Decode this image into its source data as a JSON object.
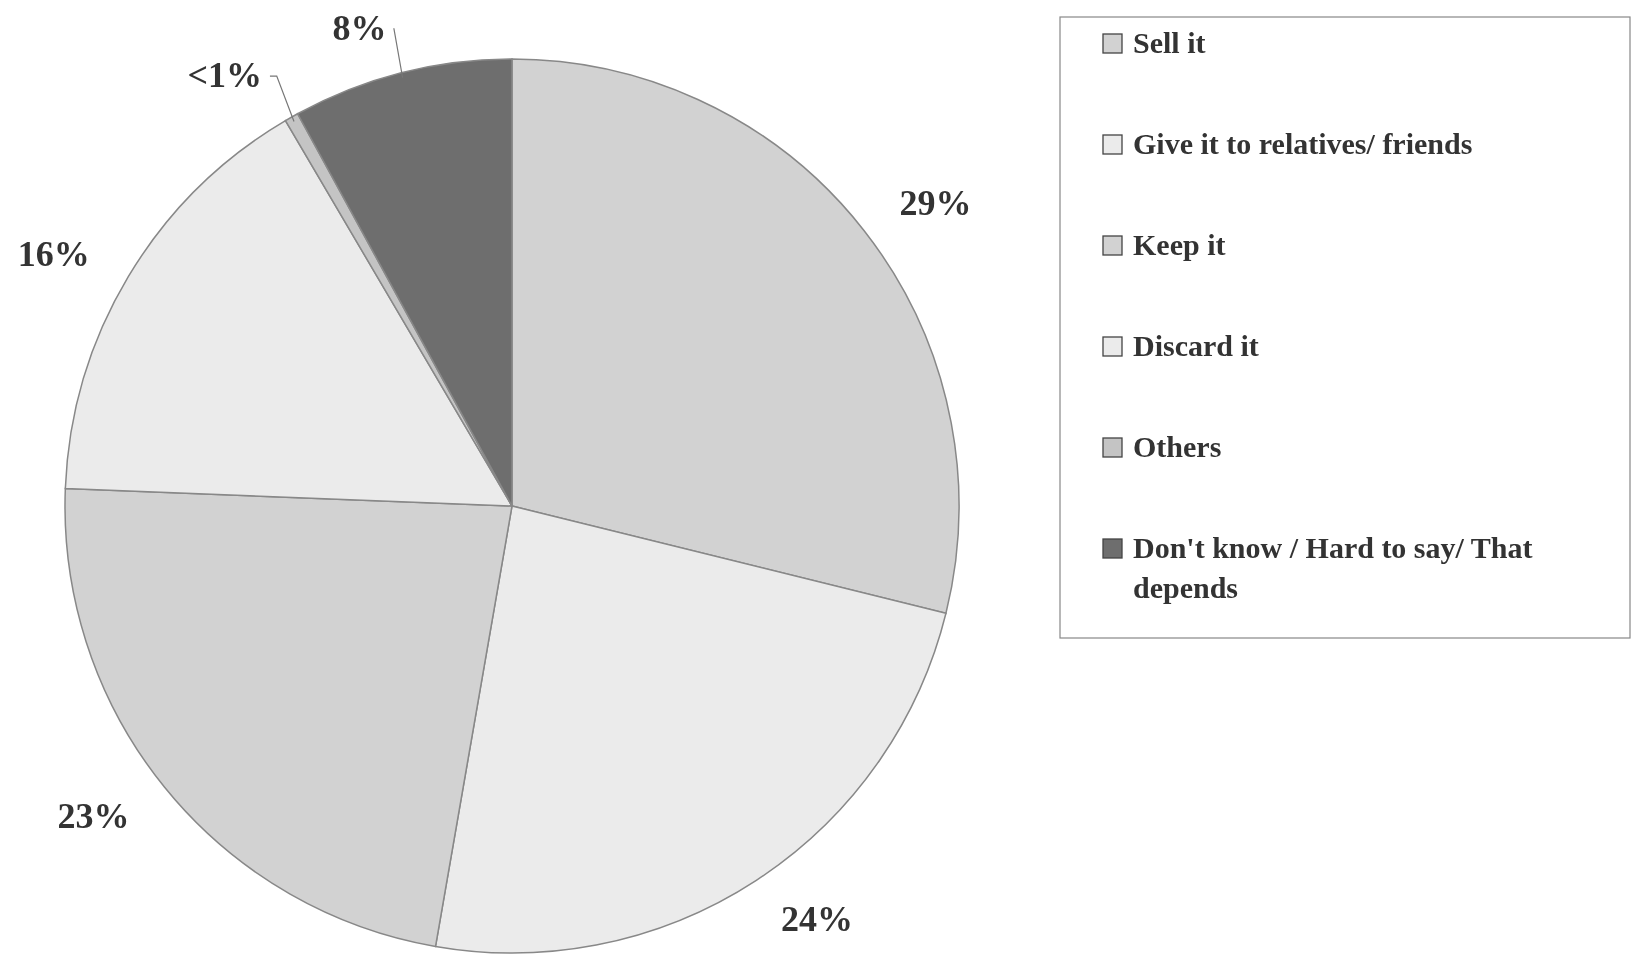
{
  "chart_data": {
    "type": "pie",
    "categories": [
      "Sell it",
      "Give it to relatives/ friends",
      "Keep it",
      "Discard it",
      "Others",
      "Don't know / Hard to say/ That depends"
    ],
    "values": [
      29,
      24,
      23,
      16,
      0.5,
      8
    ],
    "value_labels": [
      "29%",
      "24%",
      "23%",
      "16%",
      "<1%",
      "8%"
    ],
    "colors": [
      "#d2d2d2",
      "#ebebeb",
      "#d2d2d2",
      "#ebebeb",
      "#c4c4c4",
      "#6e6e6e"
    ],
    "legend": "top right"
  }
}
